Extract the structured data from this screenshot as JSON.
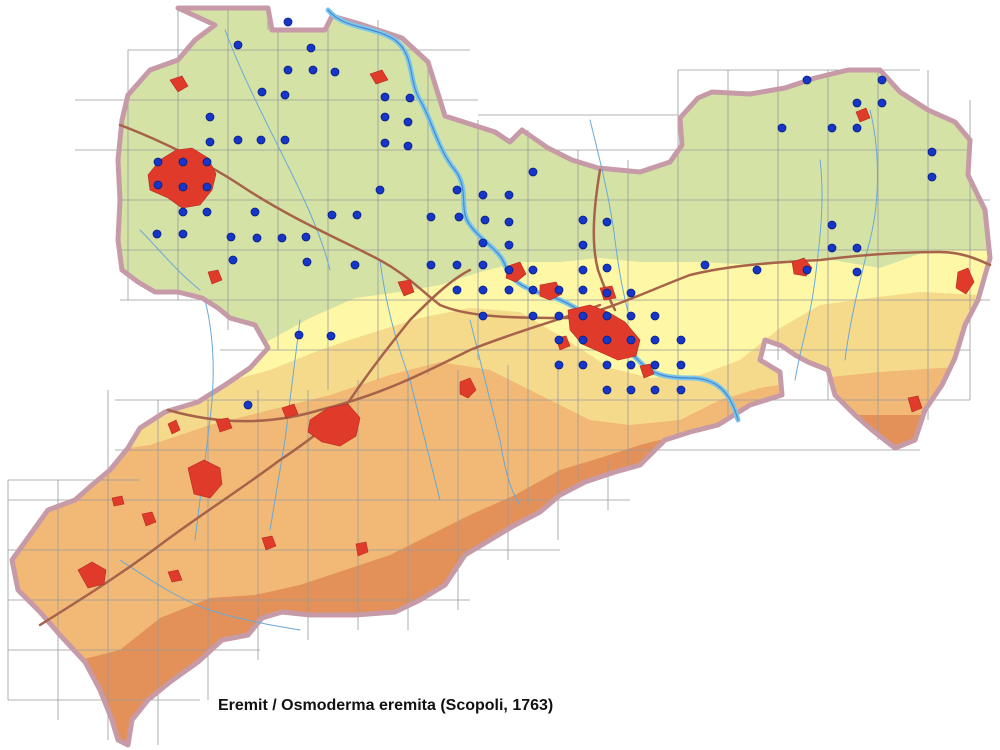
{
  "caption": "Eremit / Osmoderma eremita (Scopoli, 1763)",
  "colors": {
    "lowland": "#d4e3a5",
    "plain": "#fdf7a6",
    "hill": "#f6da8c",
    "upland": "#f1b876",
    "mountain": "#e08a55",
    "border": "#c79aa7",
    "river": "#7bc6ec",
    "road": "#a7634a",
    "city": "#e03a2b",
    "record": "#1536c8",
    "grid": "#9a9a9a"
  },
  "icons": {
    "record": "blue-dot-marker",
    "city": "red-urban-area"
  },
  "records": [
    [
      288,
      22
    ],
    [
      238,
      45
    ],
    [
      311,
      48
    ],
    [
      288,
      70
    ],
    [
      313,
      70
    ],
    [
      335,
      72
    ],
    [
      262,
      92
    ],
    [
      285,
      95
    ],
    [
      385,
      97
    ],
    [
      410,
      98
    ],
    [
      385,
      117
    ],
    [
      408,
      122
    ],
    [
      210,
      117
    ],
    [
      238,
      140
    ],
    [
      261,
      140
    ],
    [
      285,
      140
    ],
    [
      385,
      143
    ],
    [
      408,
      146
    ],
    [
      210,
      142
    ],
    [
      158,
      162
    ],
    [
      183,
      162
    ],
    [
      207,
      162
    ],
    [
      158,
      185
    ],
    [
      183,
      187
    ],
    [
      207,
      187
    ],
    [
      183,
      212
    ],
    [
      207,
      212
    ],
    [
      255,
      212
    ],
    [
      157,
      234
    ],
    [
      183,
      234
    ],
    [
      231,
      237
    ],
    [
      257,
      238
    ],
    [
      282,
      238
    ],
    [
      306,
      237
    ],
    [
      332,
      215
    ],
    [
      357,
      215
    ],
    [
      307,
      262
    ],
    [
      233,
      260
    ],
    [
      380,
      190
    ],
    [
      457,
      190
    ],
    [
      483,
      195
    ],
    [
      509,
      195
    ],
    [
      533,
      172
    ],
    [
      431,
      217
    ],
    [
      459,
      217
    ],
    [
      485,
      220
    ],
    [
      509,
      222
    ],
    [
      483,
      243
    ],
    [
      509,
      245
    ],
    [
      583,
      220
    ],
    [
      607,
      222
    ],
    [
      583,
      245
    ],
    [
      583,
      270
    ],
    [
      607,
      268
    ],
    [
      355,
      265
    ],
    [
      431,
      265
    ],
    [
      457,
      265
    ],
    [
      483,
      265
    ],
    [
      509,
      270
    ],
    [
      533,
      270
    ],
    [
      457,
      290
    ],
    [
      483,
      290
    ],
    [
      509,
      290
    ],
    [
      533,
      290
    ],
    [
      559,
      290
    ],
    [
      583,
      290
    ],
    [
      607,
      293
    ],
    [
      631,
      293
    ],
    [
      483,
      316
    ],
    [
      533,
      316
    ],
    [
      559,
      316
    ],
    [
      583,
      316
    ],
    [
      607,
      316
    ],
    [
      631,
      316
    ],
    [
      655,
      316
    ],
    [
      299,
      335
    ],
    [
      331,
      336
    ],
    [
      583,
      340
    ],
    [
      607,
      340
    ],
    [
      631,
      340
    ],
    [
      655,
      340
    ],
    [
      681,
      340
    ],
    [
      559,
      340
    ],
    [
      559,
      365
    ],
    [
      583,
      365
    ],
    [
      607,
      365
    ],
    [
      631,
      365
    ],
    [
      655,
      365
    ],
    [
      681,
      365
    ],
    [
      607,
      390
    ],
    [
      631,
      390
    ],
    [
      655,
      390
    ],
    [
      681,
      390
    ],
    [
      248,
      405
    ],
    [
      705,
      265
    ],
    [
      757,
      270
    ],
    [
      807,
      270
    ],
    [
      832,
      248
    ],
    [
      857,
      248
    ],
    [
      857,
      272
    ],
    [
      832,
      225
    ],
    [
      882,
      80
    ],
    [
      857,
      103
    ],
    [
      882,
      103
    ],
    [
      832,
      128
    ],
    [
      857,
      128
    ],
    [
      782,
      128
    ],
    [
      932,
      152
    ],
    [
      932,
      177
    ],
    [
      807,
      80
    ]
  ]
}
